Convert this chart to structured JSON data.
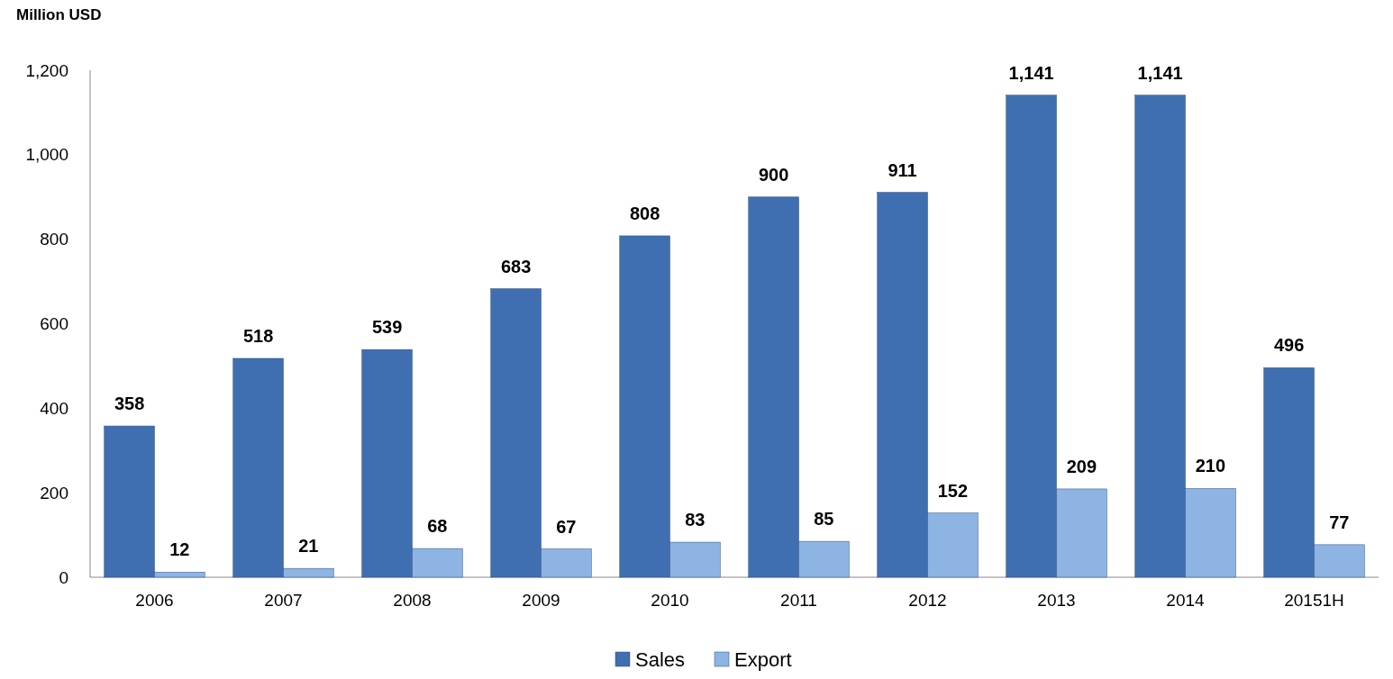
{
  "chart_data": {
    "type": "bar",
    "ylabel": "Million USD",
    "categories": [
      "2006",
      "2007",
      "2008",
      "2009",
      "2010",
      "2011",
      "2012",
      "2013",
      "2014",
      "20151H"
    ],
    "series": [
      {
        "name": "Sales",
        "color": "#3f6fb0",
        "values": [
          358,
          518,
          539,
          683,
          808,
          900,
          911,
          1141,
          1141,
          496
        ],
        "value_labels": [
          "358",
          "518",
          "539",
          "683",
          "808",
          "900",
          "911",
          "1,141",
          "1,141",
          "496"
        ]
      },
      {
        "name": "Export",
        "color": "#8db4e2",
        "values": [
          12,
          21,
          68,
          67,
          83,
          85,
          152,
          209,
          210,
          77
        ],
        "value_labels": [
          "12",
          "21",
          "68",
          "67",
          "83",
          "85",
          "152",
          "209",
          "210",
          "77"
        ]
      }
    ],
    "ylim": [
      0,
      1200
    ],
    "yticks": [
      {
        "value": 0,
        "label": "0"
      },
      {
        "value": 200,
        "label": "200"
      },
      {
        "value": 400,
        "label": "400"
      },
      {
        "value": 600,
        "label": "600"
      },
      {
        "value": 800,
        "label": "800"
      },
      {
        "value": 1000,
        "label": "1,000"
      },
      {
        "value": 1200,
        "label": "1,200"
      }
    ],
    "grid": false,
    "legend": "bottom"
  }
}
